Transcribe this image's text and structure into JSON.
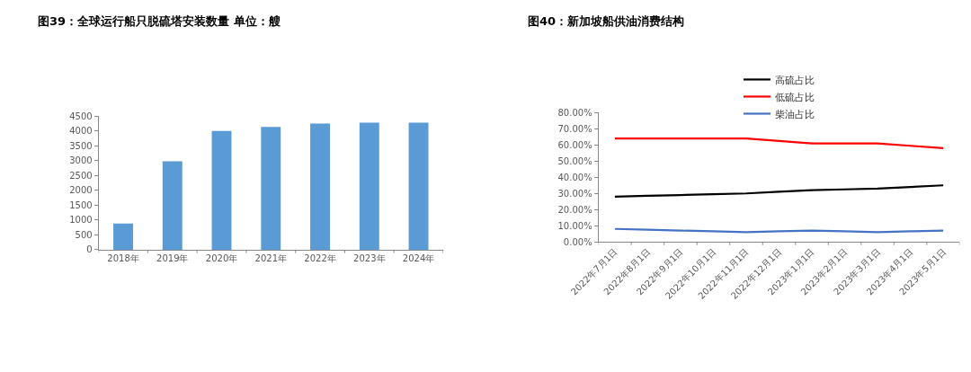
{
  "chart_data": [
    {
      "type": "bar",
      "title": "图39：全球运行船只脱硫塔安装数量 单位：艘",
      "categories": [
        "2018年",
        "2019年",
        "2020年",
        "2021年",
        "2022年",
        "2023年",
        "2024年"
      ],
      "values": [
        880,
        2980,
        4000,
        4140,
        4250,
        4280,
        4280
      ],
      "color": "#5b9bd5",
      "ylim": [
        0,
        4500
      ],
      "yticks": [
        0,
        500,
        1000,
        1500,
        2000,
        2500,
        3000,
        3500,
        4000,
        4500
      ],
      "grid": false,
      "legend": false
    },
    {
      "type": "line",
      "title": "图40：新加坡船供油消费结构",
      "categories": [
        "2022年7月1日",
        "2022年8月1日",
        "2022年9月1日",
        "2022年10月1日",
        "2022年11月1日",
        "2022年12月1日",
        "2023年1月1日",
        "2023年2月1日",
        "2023年3月1日",
        "2023年4月1日",
        "2023年5月1日"
      ],
      "series": [
        {
          "name": "高硫占比",
          "color": "#000000",
          "values": [
            28,
            28.5,
            29,
            29.5,
            30,
            31,
            32,
            32.5,
            33,
            34,
            35
          ]
        },
        {
          "name": "低硫占比",
          "color": "#ff0000",
          "values": [
            64,
            64,
            64,
            64,
            64,
            62.5,
            61,
            61,
            61,
            59.5,
            58
          ]
        },
        {
          "name": "柴油占比",
          "color": "#4472c4",
          "values": [
            8,
            7.5,
            7,
            6.5,
            6,
            6.5,
            7,
            6.5,
            6,
            6.5,
            7
          ]
        }
      ],
      "ylim": [
        0,
        80
      ],
      "yticks": [
        {
          "value": 0,
          "label": "0.00%"
        },
        {
          "value": 10,
          "label": "10.00%"
        },
        {
          "value": 20,
          "label": "20.00%"
        },
        {
          "value": 30,
          "label": "30.00%"
        },
        {
          "value": 40,
          "label": "40.00%"
        },
        {
          "value": 50,
          "label": "50.00%"
        },
        {
          "value": 60,
          "label": "60.00%"
        },
        {
          "value": 70,
          "label": "70.00%"
        },
        {
          "value": 80,
          "label": "80.00%"
        }
      ],
      "grid": false,
      "legend": "top",
      "marker": "none",
      "line_style": "solid"
    }
  ]
}
